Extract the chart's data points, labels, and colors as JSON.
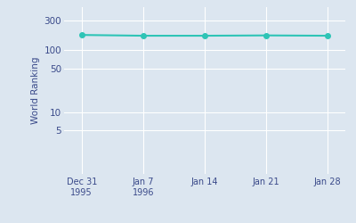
{
  "dates": [
    0,
    7,
    14,
    21,
    28
  ],
  "rankings": [
    175,
    170,
    170,
    172,
    170
  ],
  "x_tick_labels": [
    "Dec 31\n1995",
    "Jan 7\n1996",
    "Jan 14",
    "Jan 21",
    "Jan 28"
  ],
  "x_tick_positions": [
    0,
    7,
    14,
    21,
    28
  ],
  "ylabel": "World Ranking",
  "line_color": "#2ec4b6",
  "marker_color": "#2ec4b6",
  "bg_color": "#dce6f0",
  "plot_bg_color": "#dce6f0",
  "yticks": [
    300,
    100,
    50,
    10,
    5
  ],
  "ylim_bottom": 1,
  "ylim_top": 500,
  "xlim_left": -2,
  "xlim_right": 30
}
